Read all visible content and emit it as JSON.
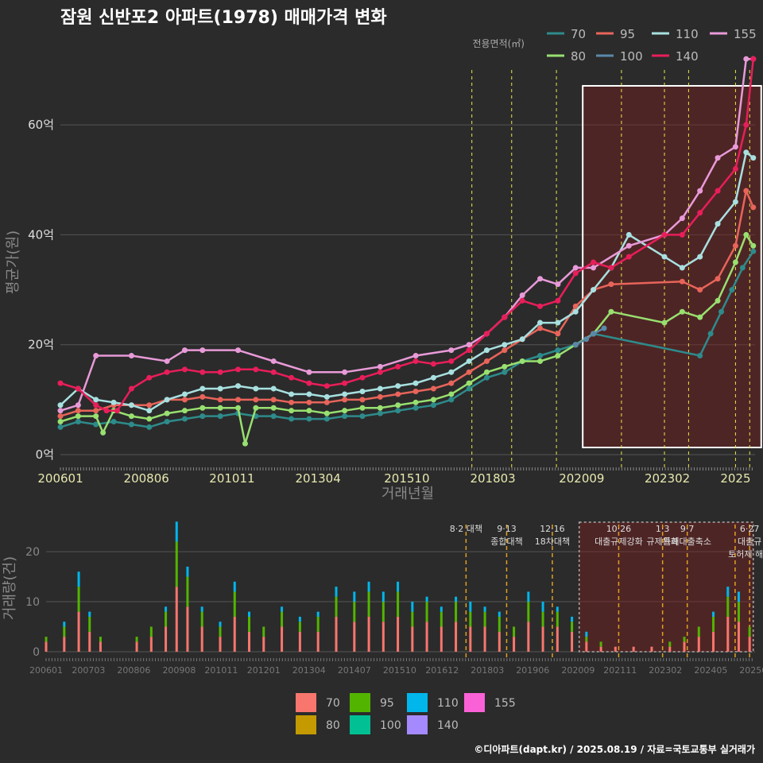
{
  "title": "잠원 신반포2 아파트(1978) 매매가격 변화",
  "credit": "©디아파트(dapt.kr) / 2025.08.19 / 자료=국토교통부 실거래가",
  "colors": {
    "background": "#2b2b2b",
    "grid": "#555555",
    "policy_line_top": "#e8e84a",
    "policy_line_bottom": "#e0a020",
    "highlight_fill": "#7a1f1f"
  },
  "chart_data": [
    {
      "type": "line",
      "xlabel": "거래년월",
      "ylabel": "평균가(원)",
      "ylim": [
        0,
        70
      ],
      "yticks": [
        {
          "value": 0,
          "label": "0억"
        },
        {
          "value": 20,
          "label": "20억"
        },
        {
          "value": 40,
          "label": "40억"
        },
        {
          "value": 60,
          "label": "60억"
        }
      ],
      "xlim": [
        2006.0,
        2025.55
      ],
      "xticks": [
        {
          "value": 2006.0,
          "label": "200601"
        },
        {
          "value": 2008.42,
          "label": "200806"
        },
        {
          "value": 2010.83,
          "label": "201011"
        },
        {
          "value": 2013.25,
          "label": "201304"
        },
        {
          "value": 2015.75,
          "label": "201510"
        },
        {
          "value": 2018.17,
          "label": "201803"
        },
        {
          "value": 2020.67,
          "label": "202009"
        },
        {
          "value": 2023.08,
          "label": "202302"
        },
        {
          "value": 2025.0,
          "label": "2025"
        }
      ],
      "legend_title": "전용면적(㎡)",
      "legend_position": "top-right",
      "policy_lines": [
        2017.58,
        2018.7,
        2019.96,
        2021.79,
        2023.0,
        2023.68,
        2025.0,
        2025.4
      ],
      "highlight_range": [
        2020.7,
        2025.5
      ],
      "series": [
        {
          "name": "70",
          "color": "#2e8b8b",
          "x": [
            2006.0,
            2006.5,
            2007.0,
            2007.5,
            2008.0,
            2008.5,
            2009.0,
            2009.5,
            2010.0,
            2010.5,
            2011.0,
            2011.5,
            2012.0,
            2012.5,
            2013.0,
            2013.5,
            2014.0,
            2014.5,
            2015.0,
            2015.5,
            2016.0,
            2016.5,
            2017.0,
            2017.5,
            2018.0,
            2018.5,
            2019.0,
            2019.5,
            2020.0,
            2020.5,
            2021.0,
            2024.0,
            2024.3,
            2024.6,
            2024.9,
            2025.2,
            2025.5
          ],
          "y": [
            5,
            6,
            5.5,
            6,
            5.5,
            5,
            6,
            6.5,
            7,
            7,
            7.5,
            7,
            7,
            6.5,
            6.5,
            6.5,
            7,
            7,
            7.5,
            8,
            8.5,
            9,
            10,
            12,
            14,
            15,
            17,
            18,
            19,
            20,
            22,
            18,
            22,
            26,
            30,
            34,
            37
          ]
        },
        {
          "name": "95",
          "color": "#e8645a",
          "x": [
            2006.0,
            2006.5,
            2007.0,
            2007.5,
            2008.0,
            2008.5,
            2009.0,
            2009.5,
            2010.0,
            2010.5,
            2011.0,
            2011.5,
            2012.0,
            2012.5,
            2013.0,
            2013.5,
            2014.0,
            2014.5,
            2015.0,
            2015.5,
            2016.0,
            2016.5,
            2017.0,
            2017.5,
            2018.0,
            2018.5,
            2019.0,
            2019.5,
            2020.0,
            2020.5,
            2021.0,
            2021.5,
            2023.5,
            2024.0,
            2024.5,
            2025.0,
            2025.3,
            2025.5
          ],
          "y": [
            7,
            8,
            8,
            9,
            9,
            9,
            10,
            10,
            10.5,
            10,
            10,
            10,
            10,
            9.5,
            9.5,
            9.5,
            10,
            10,
            10.5,
            11,
            11.5,
            12,
            13,
            15,
            17,
            19,
            21,
            23,
            22,
            27,
            30,
            31,
            31.5,
            30,
            32,
            38,
            48,
            45
          ]
        },
        {
          "name": "110",
          "color": "#a8e0e0",
          "x": [
            2006.0,
            2006.5,
            2007.0,
            2007.5,
            2008.0,
            2008.5,
            2009.0,
            2009.5,
            2010.0,
            2010.5,
            2011.0,
            2011.5,
            2012.0,
            2012.5,
            2013.0,
            2013.5,
            2014.0,
            2014.5,
            2015.0,
            2015.5,
            2016.0,
            2016.5,
            2017.0,
            2017.5,
            2018.0,
            2018.5,
            2019.0,
            2019.5,
            2020.0,
            2020.5,
            2021.0,
            2021.5,
            2022.0,
            2023.0,
            2023.5,
            2024.0,
            2024.5,
            2025.0,
            2025.3,
            2025.5
          ],
          "y": [
            9,
            12,
            10,
            9.5,
            9,
            8,
            10,
            11,
            12,
            12,
            12.5,
            12,
            12,
            11,
            11,
            10.5,
            11,
            11.5,
            12,
            12.5,
            13,
            14,
            15,
            17,
            19,
            20,
            21,
            24,
            24,
            26,
            30,
            34,
            40,
            36,
            34,
            36,
            42,
            46,
            55,
            54
          ]
        },
        {
          "name": "155",
          "color": "#e89ad8",
          "x": [
            2006.0,
            2006.5,
            2007.0,
            2008.0,
            2009.0,
            2009.5,
            2010.0,
            2011.0,
            2012.0,
            2013.0,
            2014.0,
            2015.0,
            2016.0,
            2017.0,
            2017.5,
            2018.0,
            2018.5,
            2019.0,
            2019.5,
            2020.0,
            2020.5,
            2021.0,
            2022.0,
            2023.0,
            2023.5,
            2024.0,
            2024.5,
            2025.0,
            2025.3,
            2025.5
          ],
          "y": [
            8,
            9,
            18,
            18,
            17,
            19,
            19,
            19,
            17,
            15,
            15,
            16,
            18,
            19,
            20,
            22,
            25,
            29,
            32,
            31,
            34,
            34,
            38,
            40,
            43,
            48,
            54,
            56,
            72,
            72
          ]
        },
        {
          "name": "80",
          "color": "#98e070",
          "x": [
            2006.0,
            2006.5,
            2007.0,
            2007.2,
            2007.5,
            2008.0,
            2008.5,
            2009.0,
            2009.5,
            2010.0,
            2010.5,
            2011.0,
            2011.2,
            2011.5,
            2012.0,
            2012.5,
            2013.0,
            2013.5,
            2014.0,
            2014.5,
            2015.0,
            2015.5,
            2016.0,
            2016.5,
            2017.0,
            2017.5,
            2018.0,
            2018.5,
            2019.0,
            2019.5,
            2020.0,
            2020.5,
            2021.0,
            2021.5,
            2023.0,
            2023.5,
            2024.0,
            2024.5,
            2025.0,
            2025.3,
            2025.5
          ],
          "y": [
            6,
            7,
            7,
            4,
            8,
            7,
            6.5,
            7.5,
            8,
            8.5,
            8.5,
            8.5,
            2,
            8.5,
            8.5,
            8,
            8,
            7.5,
            8,
            8.5,
            8.5,
            9,
            9.5,
            10,
            11,
            13,
            15,
            16,
            17,
            17,
            18,
            20,
            22,
            26,
            24,
            26,
            25,
            28,
            35,
            40,
            38
          ]
        },
        {
          "name": "100",
          "color": "#5a88a8",
          "x": [
            2020.5,
            2020.8,
            2021.0,
            2021.3
          ],
          "y": [
            20,
            21,
            22,
            23
          ]
        },
        {
          "name": "140",
          "color": "#e81e5a",
          "x": [
            2006.0,
            2006.5,
            2007.0,
            2007.3,
            2007.6,
            2008.0,
            2008.5,
            2009.0,
            2009.5,
            2010.0,
            2010.5,
            2011.0,
            2011.5,
            2012.0,
            2012.5,
            2013.0,
            2013.5,
            2014.0,
            2014.5,
            2015.0,
            2015.5,
            2016.0,
            2016.5,
            2017.0,
            2017.5,
            2018.0,
            2018.5,
            2019.0,
            2019.5,
            2020.0,
            2020.5,
            2021.0,
            2021.5,
            2022.0,
            2023.0,
            2023.5,
            2024.0,
            2024.5,
            2025.0,
            2025.3,
            2025.5
          ],
          "y": [
            13,
            12,
            9,
            8,
            8,
            12,
            14,
            15,
            15.5,
            15,
            15,
            15.5,
            15.5,
            15,
            14,
            13,
            12.5,
            13,
            14,
            15,
            16,
            17,
            16.5,
            17,
            19,
            22,
            25,
            28,
            27,
            28,
            33,
            35,
            34,
            36,
            40,
            40,
            44,
            48,
            52,
            60,
            72
          ]
        }
      ]
    },
    {
      "type": "bar",
      "stacked": true,
      "ylabel": "거래량(건)",
      "ylim": [
        0,
        27
      ],
      "yticks": [
        {
          "value": 0,
          "label": "0"
        },
        {
          "value": 10,
          "label": "10"
        },
        {
          "value": 20,
          "label": "20"
        }
      ],
      "xlim": [
        2006.0,
        2025.55
      ],
      "xticks": [
        {
          "value": 2006.0,
          "label": "200601"
        },
        {
          "value": 2007.17,
          "label": "200703"
        },
        {
          "value": 2008.42,
          "label": "200806"
        },
        {
          "value": 2009.67,
          "label": "200908"
        },
        {
          "value": 2010.83,
          "label": "201011"
        },
        {
          "value": 2012.0,
          "label": "201201"
        },
        {
          "value": 2013.25,
          "label": "201304"
        },
        {
          "value": 2014.5,
          "label": "201407"
        },
        {
          "value": 2015.75,
          "label": "201510"
        },
        {
          "value": 2016.92,
          "label": "201612"
        },
        {
          "value": 2018.17,
          "label": "201803"
        },
        {
          "value": 2019.42,
          "label": "201906"
        },
        {
          "value": 2020.67,
          "label": "202009"
        },
        {
          "value": 2021.83,
          "label": "202111"
        },
        {
          "value": 2023.08,
          "label": "202302"
        },
        {
          "value": 2024.33,
          "label": "202405"
        },
        {
          "value": 2025.5,
          "label": "20250"
        }
      ],
      "policy_lines": [
        2017.58,
        2018.7,
        2019.96,
        2021.79,
        2023.0,
        2023.68,
        2025.0,
        2025.4
      ],
      "annotations": [
        {
          "x": 2017.58,
          "lines": [
            "8·2 대책"
          ]
        },
        {
          "x": 2018.7,
          "lines": [
            "9·13",
            "종합대책"
          ]
        },
        {
          "x": 2019.96,
          "lines": [
            "12·16",
            "18차대책"
          ]
        },
        {
          "x": 2021.79,
          "lines": [
            "10·26",
            "대출규제강화"
          ]
        },
        {
          "x": 2023.0,
          "lines": [
            "1·3",
            "규제완화"
          ]
        },
        {
          "x": 2023.68,
          "lines": [
            "9·7",
            "특례대출축소"
          ]
        },
        {
          "x": 2025.4,
          "lines": [
            "6·27",
            "대출규",
            "토허제 해제"
          ]
        }
      ],
      "highlight_range": [
        2020.7,
        2025.5
      ],
      "series": [
        {
          "name": "70",
          "color": "#f8766d"
        },
        {
          "name": "95",
          "color": "#53b400"
        },
        {
          "name": "110",
          "color": "#00b6eb"
        },
        {
          "name": "155",
          "color": "#fb61d7"
        },
        {
          "name": "80",
          "color": "#c49a00"
        },
        {
          "name": "100",
          "color": "#00c094"
        },
        {
          "name": "140",
          "color": "#a58aff"
        }
      ],
      "totals_by_period": [
        {
          "x": 2006.0,
          "v": 3
        },
        {
          "x": 2006.5,
          "v": 6
        },
        {
          "x": 2006.9,
          "v": 16
        },
        {
          "x": 2007.2,
          "v": 8
        },
        {
          "x": 2007.5,
          "v": 3
        },
        {
          "x": 2008.5,
          "v": 3
        },
        {
          "x": 2008.9,
          "v": 5
        },
        {
          "x": 2009.3,
          "v": 9
        },
        {
          "x": 2009.6,
          "v": 26
        },
        {
          "x": 2009.9,
          "v": 17
        },
        {
          "x": 2010.3,
          "v": 9
        },
        {
          "x": 2010.8,
          "v": 6
        },
        {
          "x": 2011.2,
          "v": 14
        },
        {
          "x": 2011.6,
          "v": 8
        },
        {
          "x": 2012.0,
          "v": 5
        },
        {
          "x": 2012.5,
          "v": 9
        },
        {
          "x": 2013.0,
          "v": 7
        },
        {
          "x": 2013.5,
          "v": 8
        },
        {
          "x": 2014.0,
          "v": 13
        },
        {
          "x": 2014.5,
          "v": 12
        },
        {
          "x": 2014.9,
          "v": 14
        },
        {
          "x": 2015.3,
          "v": 12
        },
        {
          "x": 2015.7,
          "v": 14
        },
        {
          "x": 2016.1,
          "v": 10
        },
        {
          "x": 2016.5,
          "v": 11
        },
        {
          "x": 2016.9,
          "v": 9
        },
        {
          "x": 2017.3,
          "v": 11
        },
        {
          "x": 2017.7,
          "v": 10
        },
        {
          "x": 2018.1,
          "v": 9
        },
        {
          "x": 2018.5,
          "v": 8
        },
        {
          "x": 2018.9,
          "v": 5
        },
        {
          "x": 2019.3,
          "v": 12
        },
        {
          "x": 2019.7,
          "v": 10
        },
        {
          "x": 2020.1,
          "v": 9
        },
        {
          "x": 2020.5,
          "v": 7
        },
        {
          "x": 2020.9,
          "v": 4
        },
        {
          "x": 2021.3,
          "v": 2
        },
        {
          "x": 2021.7,
          "v": 1
        },
        {
          "x": 2022.2,
          "v": 1
        },
        {
          "x": 2022.7,
          "v": 1
        },
        {
          "x": 2023.2,
          "v": 2
        },
        {
          "x": 2023.6,
          "v": 3
        },
        {
          "x": 2024.0,
          "v": 5
        },
        {
          "x": 2024.4,
          "v": 8
        },
        {
          "x": 2024.8,
          "v": 13
        },
        {
          "x": 2025.1,
          "v": 12
        },
        {
          "x": 2025.4,
          "v": 5
        }
      ]
    }
  ]
}
